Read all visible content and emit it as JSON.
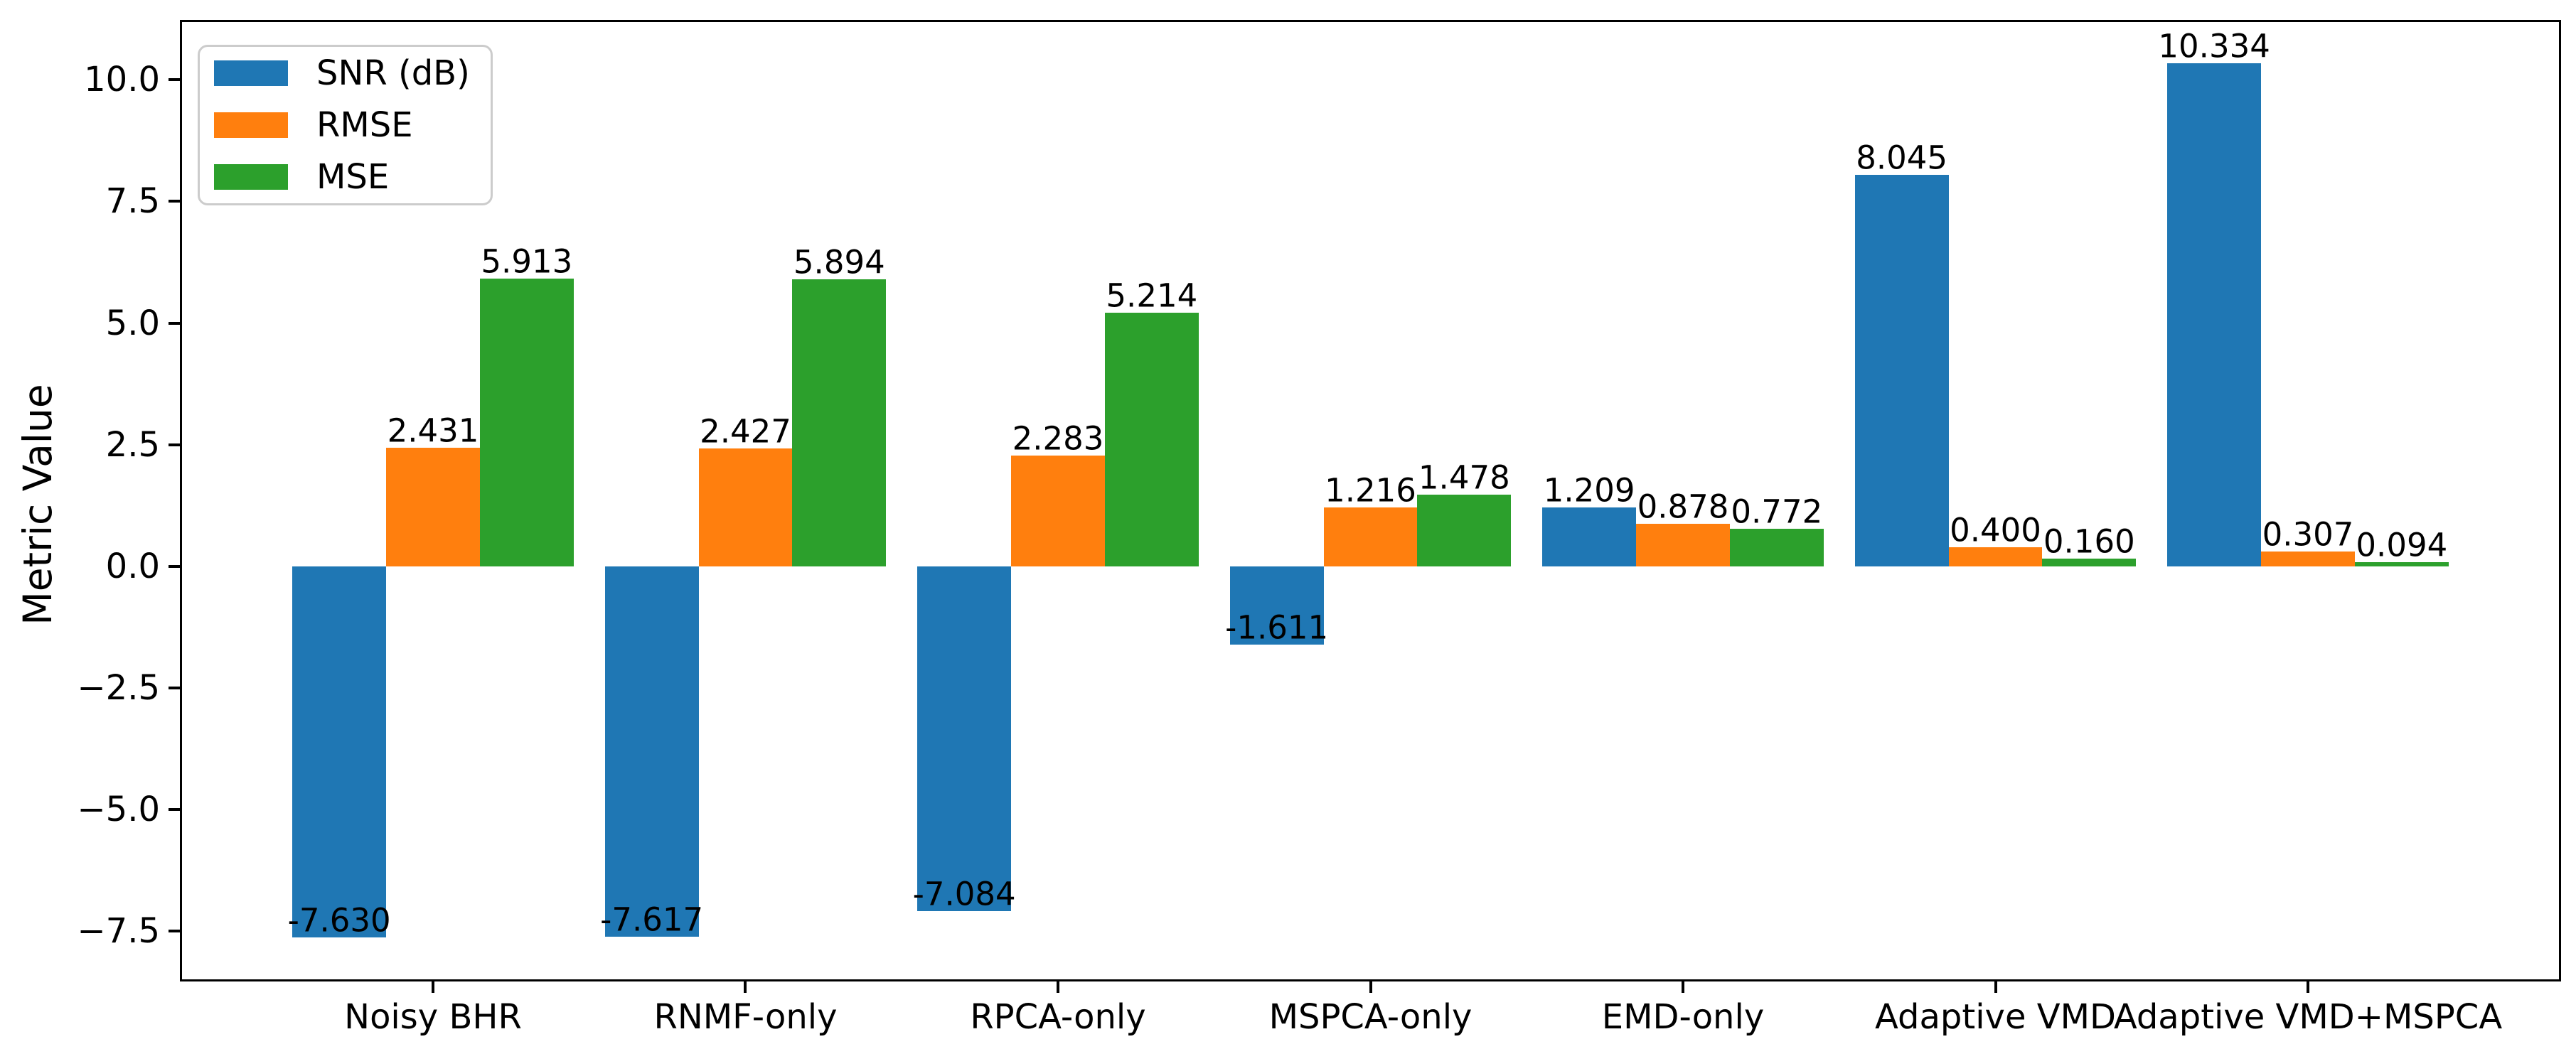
{
  "figure": {
    "kind": "matplotlib-style bar chart",
    "background": "#ffffff"
  },
  "chart_data": {
    "type": "bar",
    "title": "",
    "xlabel": "",
    "ylabel": "Metric Value",
    "categories": [
      "Noisy BHR",
      "RNMF-only",
      "RPCA-only",
      "MSPCA-only",
      "EMD-only",
      "Adaptive VMD",
      "Adaptive VMD+MSPCA"
    ],
    "series": [
      {
        "name": "SNR (dB)",
        "color": "#1f77b4",
        "values": [
          -7.63,
          -7.617,
          -7.084,
          -1.611,
          1.209,
          8.045,
          10.334
        ],
        "labels": [
          "-7.630",
          "-7.617",
          "-7.084",
          "-1.611",
          "1.209",
          "8.045",
          "10.334"
        ]
      },
      {
        "name": "RMSE",
        "color": "#ff7f0e",
        "values": [
          2.431,
          2.427,
          2.283,
          1.216,
          0.878,
          0.4,
          0.307
        ],
        "labels": [
          "2.431",
          "2.427",
          "2.283",
          "1.216",
          "0.878",
          "0.400",
          "0.307"
        ]
      },
      {
        "name": "MSE",
        "color": "#2ca02c",
        "values": [
          5.913,
          5.894,
          5.214,
          1.478,
          0.772,
          0.16,
          0.094
        ],
        "labels": [
          "5.913",
          "5.894",
          "5.214",
          "1.478",
          "0.772",
          "0.160",
          "0.094"
        ]
      }
    ],
    "bar_width": 0.3,
    "xlim": [
      -0.81,
      6.81
    ],
    "ylim": [
      -8.53,
      11.23
    ],
    "yticks": {
      "values": [
        10.0,
        7.5,
        5.0,
        2.5,
        0.0,
        -2.5,
        -5.0,
        -7.5
      ],
      "labels": [
        "10.0",
        "7.5",
        "5.0",
        "2.5",
        "0.0",
        "−2.5",
        "−5.0",
        "−7.5"
      ]
    },
    "grid": false,
    "legend": {
      "position": "upper left",
      "entries": [
        "SNR (dB)",
        "RMSE",
        "MSE"
      ]
    },
    "axis_color": "#000000",
    "text_color": "#000000"
  }
}
